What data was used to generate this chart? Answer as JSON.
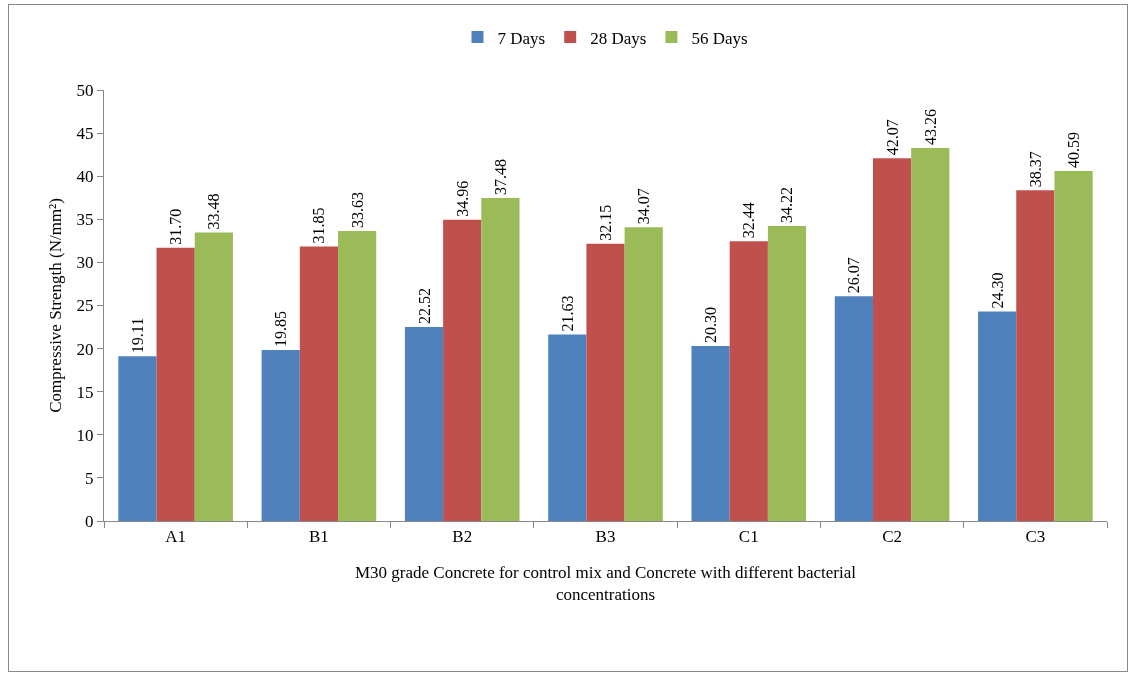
{
  "chart_data": {
    "type": "bar",
    "xlabel": "M30 grade Concrete for control mix and Concrete with different bacterial concentrations",
    "ylabel": "Compressive Strength (N/mm²)",
    "categories": [
      "A1",
      "B1",
      "B2",
      "B3",
      "C1",
      "C2",
      "C3"
    ],
    "series": [
      {
        "name": "7 Days",
        "color": "#4f81bd",
        "values": [
          19.11,
          19.85,
          22.52,
          21.63,
          20.3,
          26.07,
          24.3
        ],
        "value_labels": [
          "19.11",
          "19.85",
          "22.52",
          "21.63",
          "20.30",
          "26.07",
          "24.30"
        ]
      },
      {
        "name": "28 Days",
        "color": "#c0504d",
        "values": [
          31.7,
          31.85,
          34.96,
          32.15,
          32.44,
          42.07,
          38.37
        ],
        "value_labels": [
          "31.70",
          "31.85",
          "34.96",
          "32.15",
          "32.44",
          "42.07",
          "38.37"
        ]
      },
      {
        "name": "56 Days",
        "color": "#9bbb59",
        "values": [
          33.48,
          33.63,
          37.48,
          34.07,
          34.22,
          43.26,
          40.59
        ],
        "value_labels": [
          "33.48",
          "33.63",
          "37.48",
          "34.07",
          "34.22",
          "43.26",
          "40.59"
        ]
      }
    ],
    "ylim": [
      0,
      50
    ],
    "yticks": [
      0,
      5,
      10,
      15,
      20,
      25,
      30,
      35,
      40,
      45,
      50
    ],
    "grid": false,
    "legend": "top"
  }
}
